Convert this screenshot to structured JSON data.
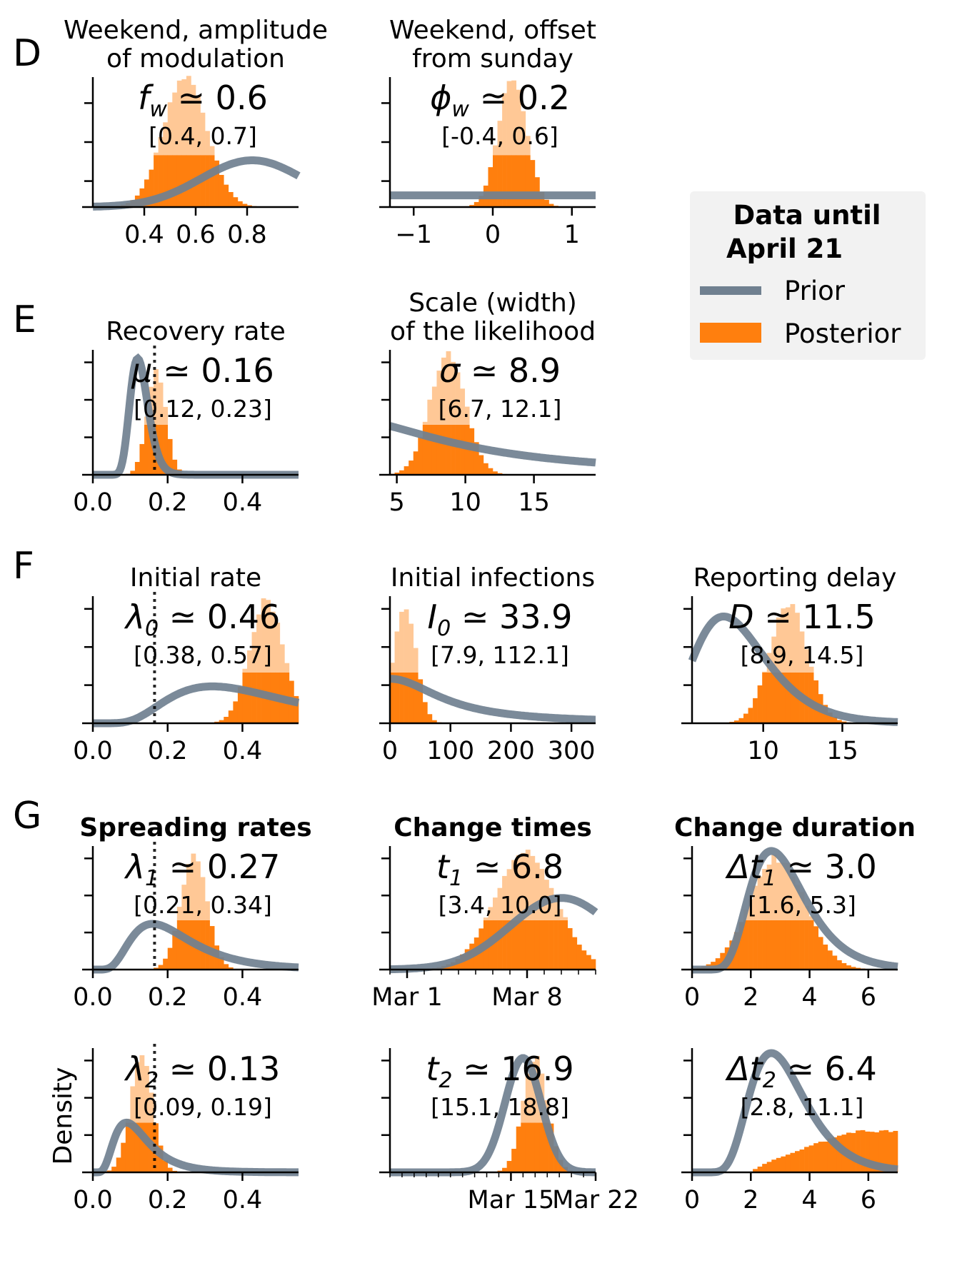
{
  "figure": {
    "colors": {
      "prior": "#708090",
      "posterior": "#ff7f0e",
      "posterior_light": "#ffc896",
      "grid": "#000000",
      "ref_line": "#777777"
    },
    "legend": {
      "title_line1": "Data until",
      "title_line2": "April 21",
      "prior_label": "Prior",
      "posterior_label": "Posterior",
      "placement": "right"
    },
    "ylabel": "Density"
  },
  "row_letters": [
    "D",
    "E",
    "F",
    "G"
  ],
  "panels": [
    {
      "id": "fw",
      "title": [
        "Weekend, amplitude",
        "of modulation"
      ],
      "title_bold": false,
      "sym": "f",
      "sub": "w",
      "value": "0.6",
      "ci": "[0.4, 0.7]",
      "xlim": [
        0.2,
        1.0
      ],
      "ticks": [
        {
          "v": 0.4,
          "l": "0.4"
        },
        {
          "v": 0.6,
          "l": "0.6"
        },
        {
          "v": 0.8,
          "l": "0.8"
        }
      ],
      "ymax": 1.0,
      "yticks": [
        0.2,
        0.5,
        0.8
      ],
      "prior": {
        "kind": "beta",
        "mode": 0.82,
        "sd": 0.2,
        "peak": 0.36
      },
      "post": {
        "mu": 0.56,
        "sd": 0.085,
        "peak": 1.0
      },
      "ref": null
    },
    {
      "id": "phiw",
      "title": [
        "Weekend, offset",
        "from sunday"
      ],
      "title_bold": false,
      "sym": "ϕ",
      "sub": "w",
      "value": "0.2",
      "ci": "[-0.4, 0.6]",
      "xlim": [
        -1.3,
        1.3
      ],
      "ticks": [
        {
          "v": -1,
          "l": "−1"
        },
        {
          "v": 0,
          "l": "0"
        },
        {
          "v": 1,
          "l": "1"
        }
      ],
      "ymax": 1.0,
      "yticks": [
        0.2,
        0.5,
        0.8
      ],
      "prior": {
        "kind": "flat",
        "level": 0.09
      },
      "post": {
        "mu": 0.25,
        "sd": 0.18,
        "peak": 1.0
      },
      "ref": null
    },
    {
      "id": "mu",
      "title": [
        "Recovery rate"
      ],
      "title_bold": false,
      "sym": "μ",
      "sub": "",
      "value": "0.16",
      "ci": "[0.12, 0.23]",
      "xlim": [
        0.0,
        0.55
      ],
      "ticks": [
        {
          "v": 0.0,
          "l": "0.0"
        },
        {
          "v": 0.2,
          "l": "0.2"
        },
        {
          "v": 0.4,
          "l": "0.4"
        }
      ],
      "ymax": 1.0,
      "yticks": [
        0.3,
        0.6,
        0.9
      ],
      "prior": {
        "kind": "lognorm",
        "mode": 0.12,
        "sd": 0.2,
        "peak": 0.93
      },
      "post": {
        "mu": 0.17,
        "sd": 0.025,
        "peak": 0.84
      },
      "ref": 0.165
    },
    {
      "id": "sigma",
      "title": [
        "Scale (width)",
        "of the likelihood"
      ],
      "title_bold": false,
      "sym": "σ",
      "sub": "",
      "value": "8.9",
      "ci": "[6.7, 12.1]",
      "xlim": [
        4.5,
        19.5
      ],
      "ticks": [
        {
          "v": 5,
          "l": "5"
        },
        {
          "v": 10,
          "l": "10"
        },
        {
          "v": 15,
          "l": "15"
        }
      ],
      "ymax": 1.0,
      "yticks": [
        0.3,
        0.6,
        0.9
      ],
      "prior": {
        "kind": "halfcauchy",
        "scale": 10,
        "peak": 0.47
      },
      "post": {
        "mu": 8.7,
        "sd": 1.3,
        "peak": 0.96
      },
      "ref": null
    },
    {
      "id": "lambda0",
      "title": [
        "Initial rate"
      ],
      "title_bold": false,
      "sym": "λ",
      "sub": "0",
      "value": "0.46",
      "ci": "[0.38, 0.57]",
      "xlim": [
        0.0,
        0.55
      ],
      "ticks": [
        {
          "v": 0.0,
          "l": "0.0"
        },
        {
          "v": 0.2,
          "l": "0.2"
        },
        {
          "v": 0.4,
          "l": "0.4"
        }
      ],
      "ymax": 1.0,
      "yticks": [
        0.3,
        0.6,
        0.9
      ],
      "prior": {
        "kind": "lognorm",
        "mode": 0.32,
        "sd": 0.5,
        "peak": 0.29
      },
      "post": {
        "mu": 0.465,
        "sd": 0.045,
        "peak": 0.97
      },
      "ref": 0.165
    },
    {
      "id": "I0",
      "title": [
        "Initial infections"
      ],
      "title_bold": false,
      "sym": "I",
      "sub": "0",
      "value": "33.9",
      "ci": "[7.9, 112.1]",
      "xlim": [
        0,
        340
      ],
      "ticks": [
        {
          "v": 0,
          "l": "0"
        },
        {
          "v": 100,
          "l": "100"
        },
        {
          "v": 200,
          "l": "200"
        },
        {
          "v": 300,
          "l": "300"
        }
      ],
      "ymax": 1.0,
      "yticks": [
        0.3,
        0.6,
        0.9
      ],
      "prior": {
        "kind": "halfcauchy",
        "scale": 100,
        "peak": 0.35
      },
      "post": {
        "mu": 25,
        "sd": 18,
        "peak": 0.92
      },
      "ref": null
    },
    {
      "id": "D",
      "title": [
        "Reporting delay"
      ],
      "title_bold": false,
      "sym": "D",
      "sub": "",
      "value": "11.5",
      "ci": "[8.9, 14.5]",
      "xlim": [
        5.5,
        18.5
      ],
      "ticks": [
        {
          "v": 10,
          "l": "10"
        },
        {
          "v": 15,
          "l": "15"
        }
      ],
      "ymax": 1.0,
      "yticks": [
        0.3,
        0.6,
        0.9
      ],
      "prior": {
        "kind": "lognorm",
        "mode": 7.5,
        "sd": 0.3,
        "peak": 0.84
      },
      "post": {
        "mu": 11.6,
        "sd": 1.2,
        "peak": 0.93
      },
      "ref": null
    },
    {
      "id": "lambda1",
      "title": [
        "Spreading rates"
      ],
      "title_bold": true,
      "sym": "λ",
      "sub": "1",
      "value": "0.27",
      "ci": "[0.21, 0.34]",
      "xlim": [
        0.0,
        0.55
      ],
      "ticks": [
        {
          "v": 0.0,
          "l": "0.0"
        },
        {
          "v": 0.2,
          "l": "0.2"
        },
        {
          "v": 0.4,
          "l": "0.4"
        }
      ],
      "ymax": 1.0,
      "yticks": [
        0.3,
        0.6,
        0.9
      ],
      "prior": {
        "kind": "lognorm",
        "mode": 0.16,
        "sd": 0.5,
        "peak": 0.37
      },
      "post": {
        "mu": 0.27,
        "sd": 0.035,
        "peak": 0.93
      },
      "ref": 0.165
    },
    {
      "id": "t1",
      "title": [
        "Change times"
      ],
      "title_bold": true,
      "sym": "t",
      "sub": "1",
      "value": "6.8",
      "ci": "[3.4, 10.0]",
      "xlim": [
        -1,
        11
      ],
      "ticks": [
        {
          "v": 0,
          "l": "Mar 1"
        },
        {
          "v": 7,
          "l": "Mar 8"
        }
      ],
      "minor": "daily",
      "ymax": 1.0,
      "yticks": [
        0.3,
        0.6,
        0.9
      ],
      "prior": {
        "kind": "gauss",
        "mu": 9,
        "sd": 3,
        "peak": 0.58
      },
      "post": {
        "mu": 6.9,
        "sd": 1.8,
        "peak": 0.95
      },
      "ref": null
    },
    {
      "id": "dt1",
      "title": [
        "Change duration"
      ],
      "title_bold": true,
      "sym": "Δt",
      "sub": "1",
      "value": "3.0",
      "ci": "[1.6, 5.3]",
      "xlim": [
        0,
        7
      ],
      "ticks": [
        {
          "v": 0,
          "l": "0"
        },
        {
          "v": 2,
          "l": "2"
        },
        {
          "v": 4,
          "l": "4"
        },
        {
          "v": 6,
          "l": "6"
        }
      ],
      "ymax": 1.0,
      "yticks": [
        0.3,
        0.6,
        0.9
      ],
      "prior": {
        "kind": "lognorm",
        "mode": 2.7,
        "sd": 0.35,
        "peak": 0.96
      },
      "post": {
        "mu": 2.9,
        "sd": 0.95,
        "peak": 0.9
      },
      "ref": null
    },
    {
      "id": "lambda2",
      "title": [],
      "title_bold": false,
      "sym": "λ",
      "sub": "2",
      "value": "0.13",
      "ci": "[0.09, 0.19]",
      "xlim": [
        0.0,
        0.55
      ],
      "ticks": [
        {
          "v": 0.0,
          "l": "0.0"
        },
        {
          "v": 0.2,
          "l": "0.2"
        },
        {
          "v": 0.4,
          "l": "0.4"
        }
      ],
      "ymax": 1.0,
      "yticks": [
        0.3,
        0.6,
        0.9
      ],
      "prior": {
        "kind": "lognorm",
        "mode": 0.09,
        "sd": 0.5,
        "peak": 0.4
      },
      "post": {
        "mu": 0.13,
        "sd": 0.03,
        "peak": 0.92
      },
      "ref": 0.165,
      "ylabel": true
    },
    {
      "id": "t2",
      "title": [],
      "title_bold": false,
      "sym": "t",
      "sub": "2",
      "value": "16.9",
      "ci": "[15.1, 18.8]",
      "xlim": [
        5,
        22
      ],
      "ticks": [
        {
          "v": 15,
          "l": "Mar 15"
        },
        {
          "v": 22,
          "l": "Mar 22"
        }
      ],
      "minor": "daily",
      "ymax": 1.0,
      "yticks": [
        0.3,
        0.6,
        0.9
      ],
      "prior": {
        "kind": "gauss",
        "mu": 16,
        "sd": 1.5,
        "peak": 0.92
      },
      "post": {
        "mu": 17.0,
        "sd": 1.0,
        "peak": 0.92
      },
      "ref": null
    },
    {
      "id": "dt2",
      "title": [],
      "title_bold": false,
      "sym": "Δt",
      "sub": "2",
      "value": "6.4",
      "ci": "[2.8, 11.1]",
      "xlim": [
        0,
        7
      ],
      "ticks": [
        {
          "v": 0,
          "l": "0"
        },
        {
          "v": 2,
          "l": "2"
        },
        {
          "v": 4,
          "l": "4"
        },
        {
          "v": 6,
          "l": "6"
        }
      ],
      "ymax": 1.0,
      "yticks": [
        0.3,
        0.6,
        0.9
      ],
      "prior": {
        "kind": "lognorm",
        "mode": 2.7,
        "sd": 0.35,
        "peak": 0.96
      },
      "post": {
        "kind": "rising",
        "peak": 0.33
      },
      "ref": null
    }
  ],
  "chart_data": [
    {
      "type": "bar",
      "title": "Weekend, amplitude of modulation",
      "annotation": "f_w ≃ 0.6",
      "credible_interval": [
        0.4,
        0.7
      ],
      "median": 0.6,
      "xlim": [
        0.2,
        1.0
      ],
      "series": [
        {
          "name": "Prior",
          "type": "line"
        },
        {
          "name": "Posterior",
          "type": "histogram"
        }
      ]
    },
    {
      "type": "bar",
      "title": "Weekend, offset from sunday",
      "annotation": "ϕ_w ≃ 0.2",
      "credible_interval": [
        -0.4,
        0.6
      ],
      "median": 0.2,
      "xlim": [
        -1.3,
        1.3
      ]
    },
    {
      "type": "bar",
      "title": "Recovery rate",
      "annotation": "μ ≃ 0.16",
      "credible_interval": [
        0.12,
        0.23
      ],
      "median": 0.16,
      "xlim": [
        0,
        0.55
      ]
    },
    {
      "type": "bar",
      "title": "Scale (width) of the likelihood",
      "annotation": "σ ≃ 8.9",
      "credible_interval": [
        6.7,
        12.1
      ],
      "median": 8.9,
      "xlim": [
        4.5,
        19.5
      ]
    },
    {
      "type": "bar",
      "title": "Initial rate",
      "annotation": "λ_0 ≃ 0.46",
      "credible_interval": [
        0.38,
        0.57
      ],
      "median": 0.46,
      "xlim": [
        0,
        0.55
      ]
    },
    {
      "type": "bar",
      "title": "Initial infections",
      "annotation": "I_0 ≃ 33.9",
      "credible_interval": [
        7.9,
        112.1
      ],
      "median": 33.9,
      "xlim": [
        0,
        340
      ]
    },
    {
      "type": "bar",
      "title": "Reporting delay",
      "annotation": "D ≃ 11.5",
      "credible_interval": [
        8.9,
        14.5
      ],
      "median": 11.5,
      "xlim": [
        5.5,
        18.5
      ]
    },
    {
      "type": "bar",
      "title": "Spreading rates",
      "annotation": "λ_1 ≃ 0.27",
      "credible_interval": [
        0.21,
        0.34
      ],
      "median": 0.27,
      "xlim": [
        0,
        0.55
      ]
    },
    {
      "type": "bar",
      "title": "Change times",
      "annotation": "t_1 ≃ 6.8",
      "credible_interval": [
        3.4,
        10.0
      ],
      "median": 6.8
    },
    {
      "type": "bar",
      "title": "Change duration",
      "annotation": "Δt_1 ≃ 3.0",
      "credible_interval": [
        1.6,
        5.3
      ],
      "median": 3.0,
      "xlim": [
        0,
        7
      ]
    },
    {
      "type": "bar",
      "annotation": "λ_2 ≃ 0.13",
      "credible_interval": [
        0.09,
        0.19
      ],
      "median": 0.13,
      "ylabel": "Density",
      "xlim": [
        0,
        0.55
      ]
    },
    {
      "type": "bar",
      "annotation": "t_2 ≃ 16.9",
      "credible_interval": [
        15.1,
        18.8
      ],
      "median": 16.9
    },
    {
      "type": "bar",
      "annotation": "Δt_2 ≃ 6.4",
      "credible_interval": [
        2.8,
        11.1
      ],
      "median": 6.4,
      "xlim": [
        0,
        7
      ]
    }
  ]
}
